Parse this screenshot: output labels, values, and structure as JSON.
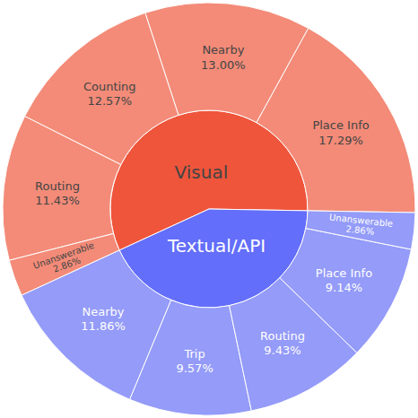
{
  "chart_data": {
    "type": "sunburst",
    "data_labels": true,
    "series": [
      {
        "name": "Visual",
        "color": "#EF553B",
        "categories": [
          "Place Info",
          "Nearby",
          "Counting",
          "Routing",
          "Unanswerable"
        ],
        "values": [
          17.29,
          13,
          12.57,
          11.43,
          2.86
        ],
        "value_labels": [
          "17.29%",
          "13.00%",
          "12.57%",
          "11.43%",
          "2.86%"
        ],
        "colors": [
          "#F38B78",
          "#F38B78",
          "#F38B78",
          "#F38B78",
          "#F38B78"
        ]
      },
      {
        "name": "Textual/API",
        "color": "#636EFA",
        "categories": [
          "Nearby",
          "Trip",
          "Routing",
          "Place Info",
          "Unanswerable"
        ],
        "values": [
          11.86,
          9.57,
          9.43,
          9.14,
          2.86
        ],
        "value_labels": [
          "11.86%",
          "9.57%",
          "9.43%",
          "9.14%",
          "2.86%"
        ],
        "colors": [
          "#949BF8",
          "#949BF8",
          "#949BF8",
          "#949BF8",
          "#949BF8"
        ]
      }
    ]
  }
}
